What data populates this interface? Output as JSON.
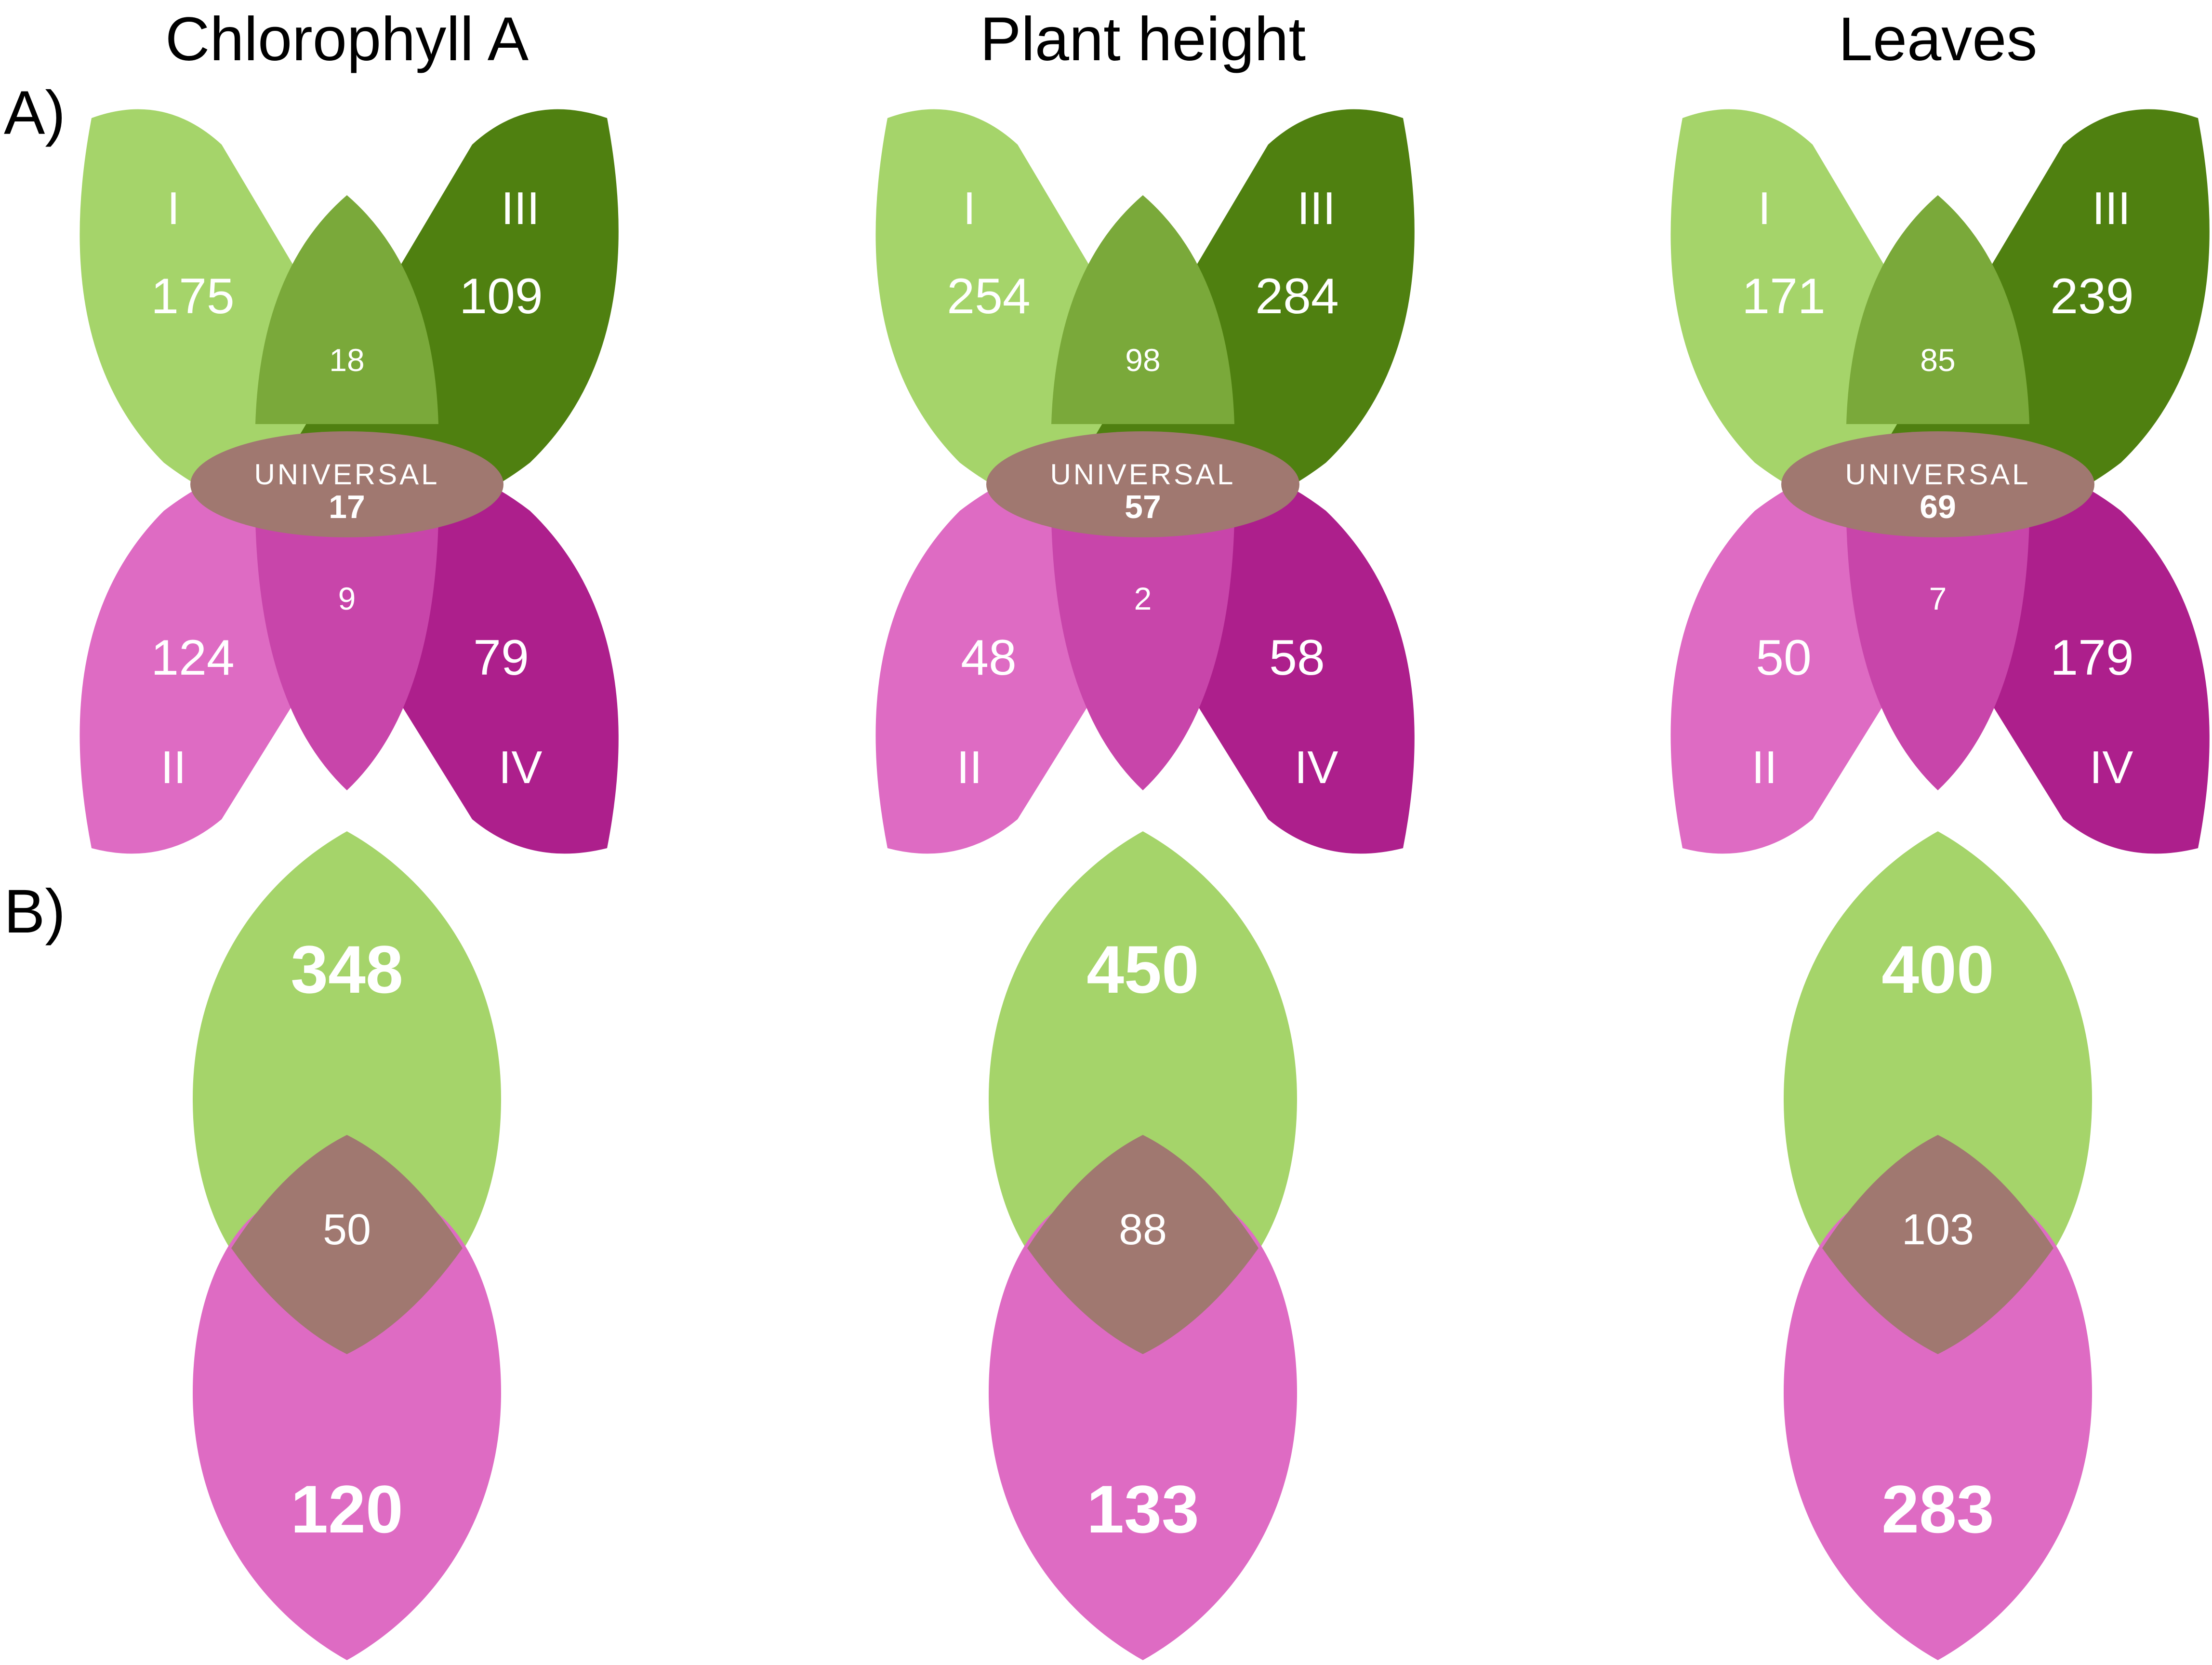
{
  "colors": {
    "light_green": "#a5d46a",
    "dark_green": "#4f8010",
    "green_overlap": "#7aa93a",
    "light_pink": "#de6bc3",
    "dark_pink": "#ad1f8c",
    "pink_overlap": "#c845aa",
    "universal": "#a07870"
  },
  "panel_labels": {
    "a": "A)",
    "b": "B)"
  },
  "universal_label": "UNIVERSAL",
  "quadrant_labels": {
    "I": "I",
    "II": "II",
    "III": "III",
    "IV": "IV"
  },
  "panels": [
    {
      "title": "Chlorophyll A",
      "A": {
        "I": "175",
        "III": "109",
        "I_III": "18",
        "universal": "17",
        "II": "124",
        "IV": "79",
        "II_IV": "9"
      },
      "B": {
        "top": "348",
        "overlap": "50",
        "bottom": "120"
      }
    },
    {
      "title": "Plant height",
      "A": {
        "I": "254",
        "III": "284",
        "I_III": "98",
        "universal": "57",
        "II": "48",
        "IV": "58",
        "II_IV": "2"
      },
      "B": {
        "top": "450",
        "overlap": "88",
        "bottom": "133"
      }
    },
    {
      "title": "Leaves",
      "A": {
        "I": "171",
        "III": "239",
        "I_III": "85",
        "universal": "69",
        "II": "50",
        "IV": "179",
        "II_IV": "7"
      },
      "B": {
        "top": "400",
        "overlap": "103",
        "bottom": "283"
      }
    }
  ]
}
